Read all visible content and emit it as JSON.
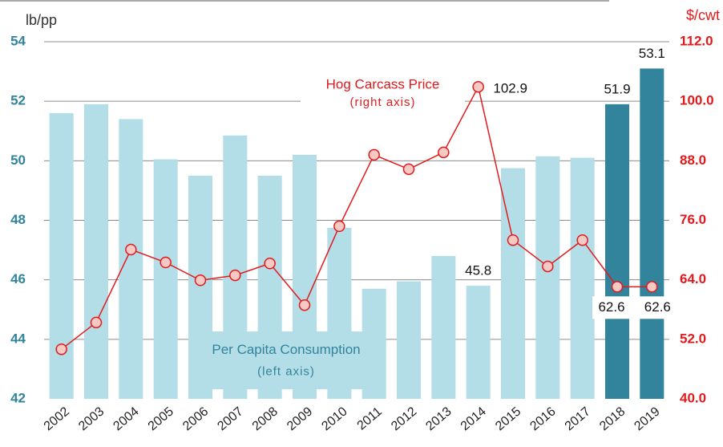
{
  "chart_data": {
    "type": "bar",
    "categories": [
      "2002",
      "2003",
      "2004",
      "2005",
      "2006",
      "2007",
      "2008",
      "2009",
      "2010",
      "2011",
      "2012",
      "2013",
      "2014",
      "2015",
      "2016",
      "2017",
      "2018",
      "2019"
    ],
    "y_label": "lb/pp",
    "y2_label": "$/cwt",
    "ylim": [
      42,
      54
    ],
    "yticks": [
      42,
      44,
      46,
      48,
      50,
      52,
      54
    ],
    "y2lim": [
      40,
      112
    ],
    "y2ticks": [
      {
        "value": 40,
        "label": "40.0"
      },
      {
        "value": 52,
        "label": "52.0"
      },
      {
        "value": 64,
        "label": "64.0"
      },
      {
        "value": 76,
        "label": "76.0"
      },
      {
        "value": 88,
        "label": "88.0"
      },
      {
        "value": 100,
        "label": "100.0"
      },
      {
        "value": 112,
        "label": "112.0"
      }
    ],
    "grid": true,
    "series": [
      {
        "name": "Per Capita Consumption",
        "note": "(left axis)",
        "type": "bar",
        "axis": "y",
        "colors": [
          "#b3dde7",
          "#b3dde7",
          "#b3dde7",
          "#b3dde7",
          "#b3dde7",
          "#b3dde7",
          "#b3dde7",
          "#b3dde7",
          "#b3dde7",
          "#b3dde7",
          "#b3dde7",
          "#b3dde7",
          "#b3dde7",
          "#b3dde7",
          "#b3dde7",
          "#b3dde7",
          "#31849b",
          "#31849b"
        ],
        "values": [
          51.6,
          51.9,
          51.4,
          50.05,
          49.5,
          50.85,
          49.5,
          50.2,
          47.75,
          45.7,
          45.95,
          46.8,
          45.8,
          49.75,
          50.15,
          50.1,
          51.9,
          53.1
        ],
        "value_labels": [
          null,
          null,
          null,
          null,
          null,
          null,
          null,
          null,
          null,
          null,
          null,
          null,
          "45.8",
          null,
          null,
          null,
          "51.9",
          "53.1"
        ]
      },
      {
        "name": "Hog Carcass Price",
        "note": "(right axis)",
        "type": "line",
        "axis": "y2",
        "color": "#e31a1c",
        "marker_fill": "#f6c9c4",
        "values": [
          50.0,
          55.4,
          70.1,
          67.5,
          63.9,
          64.9,
          67.3,
          58.9,
          74.8,
          89.2,
          86.3,
          89.7,
          102.9,
          72.0,
          66.7,
          72.0,
          62.6,
          62.6
        ],
        "value_labels": [
          null,
          null,
          null,
          null,
          null,
          null,
          null,
          null,
          null,
          null,
          null,
          null,
          "102.9",
          null,
          null,
          null,
          "62.6",
          "62.6"
        ]
      }
    ]
  }
}
